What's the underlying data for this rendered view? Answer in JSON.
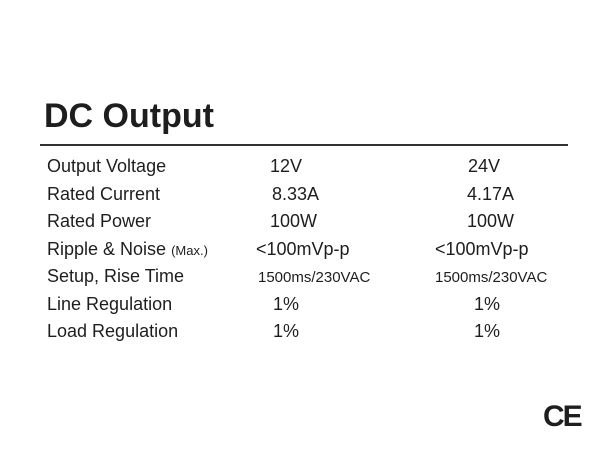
{
  "header": {
    "title": "DC Output"
  },
  "table": {
    "rows": [
      [
        "Output Voltage",
        "12V",
        "24V"
      ],
      [
        "Rated Current",
        "8.33A",
        "4.17A"
      ],
      [
        "Rated Power",
        "100W",
        "100W"
      ],
      [
        "Ripple & Noise",
        "<100mVp-p",
        "<100mVp-p"
      ],
      [
        "Setup, Rise Time",
        "1500ms/230VAC",
        "1500ms/230VAC"
      ],
      [
        "Line Regulation",
        "1%",
        "1%"
      ],
      [
        "Load Regulation",
        "1%",
        "1%"
      ]
    ],
    "notes": {
      "3": "(Max.)"
    }
  },
  "mark": "CE"
}
